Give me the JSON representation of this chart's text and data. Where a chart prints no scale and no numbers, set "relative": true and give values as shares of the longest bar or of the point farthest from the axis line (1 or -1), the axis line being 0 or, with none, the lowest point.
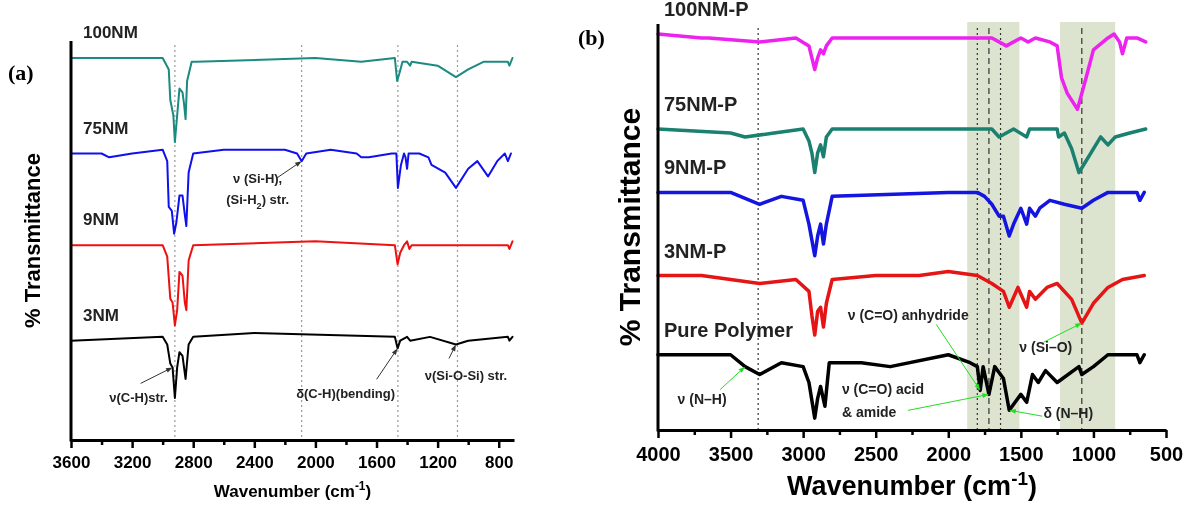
{
  "chart_data": [
    {
      "type": "line",
      "title": "(a)",
      "xlabel": "Wavenumber (cm$^{-1}$)",
      "ylabel": "% Transmittance",
      "relative": true,
      "tick_labels": "x",
      "legend": false,
      "grid": false,
      "xlim": [
        3600,
        700
      ],
      "xticks": [
        3600,
        {
          "value": 3400,
          "label": null
        },
        3200,
        {
          "value": 3000,
          "label": null
        },
        2800,
        {
          "value": 2600,
          "label": null
        },
        2400,
        {
          "value": 2200,
          "label": null
        },
        2000,
        {
          "value": 1800,
          "label": null
        },
        1600,
        {
          "value": 1400,
          "label": null
        },
        1200,
        {
          "value": 1000,
          "label": null
        },
        800
      ],
      "ref_lines": [
        {
          "axis": "x",
          "value": 2920,
          "line_style": "dotted",
          "color": "#999999"
        },
        {
          "axis": "x",
          "value": 2090,
          "line_style": "dotted",
          "color": "#999999"
        },
        {
          "axis": "x",
          "value": 1460,
          "line_style": "dotted",
          "color": "#999999"
        },
        {
          "axis": "x",
          "value": 1070,
          "line_style": "dotted",
          "color": "#999999"
        }
      ],
      "annotations": [
        {
          "text": "ν(C-H)str.",
          "x": 2935,
          "y": 0.19
        },
        {
          "text": "ν (Si-H), (Si-H$_{2}$) str.",
          "x": 2090,
          "y": 0.73
        },
        {
          "text": "δ(C-H)(bending)",
          "x": 1462,
          "y": 0.24
        },
        {
          "text": "ν(Si-O-Si) str.",
          "x": 1080,
          "y": 0.25
        }
      ],
      "series": [
        {
          "name": "100NM",
          "color": "#1b8a80",
          "x": [
            3600,
            3000,
            2960,
            2950,
            2930,
            2920,
            2905,
            2890,
            2870,
            2860,
            2850,
            2840,
            2810,
            2780,
            2000,
            1700,
            1480,
            1465,
            1450,
            1430,
            1400,
            1380,
            1370,
            1200,
            1080,
            1000,
            900,
            740,
            730,
            710
          ],
          "values": [
            1.0,
            1.0,
            0.97,
            0.89,
            0.85,
            0.78,
            0.85,
            0.92,
            0.91,
            0.88,
            0.84,
            0.94,
            0.99,
            0.99,
            1.0,
            0.99,
            1.0,
            0.94,
            0.96,
            0.99,
            0.99,
            0.98,
            0.99,
            0.98,
            0.95,
            0.97,
            0.99,
            0.99,
            0.98,
            1.0
          ]
        },
        {
          "name": "75NM",
          "color": "#1010ee",
          "x": [
            3600,
            3400,
            3350,
            3200,
            3000,
            2970,
            2960,
            2940,
            2925,
            2910,
            2890,
            2870,
            2855,
            2845,
            2830,
            2800,
            2600,
            2200,
            2120,
            2090,
            2060,
            1900,
            1730,
            1700,
            1650,
            1500,
            1470,
            1460,
            1440,
            1420,
            1410,
            1400,
            1390,
            1320,
            1260,
            1240,
            1150,
            1080,
            1000,
            940,
            870,
            810,
            760,
            740,
            720
          ],
          "values": [
            0.75,
            0.75,
            0.74,
            0.75,
            0.76,
            0.73,
            0.61,
            0.6,
            0.54,
            0.57,
            0.64,
            0.64,
            0.59,
            0.56,
            0.7,
            0.75,
            0.76,
            0.76,
            0.75,
            0.73,
            0.75,
            0.76,
            0.75,
            0.74,
            0.74,
            0.75,
            0.75,
            0.66,
            0.72,
            0.75,
            0.74,
            0.71,
            0.75,
            0.75,
            0.74,
            0.72,
            0.7,
            0.66,
            0.71,
            0.73,
            0.69,
            0.73,
            0.75,
            0.73,
            0.75
          ]
        },
        {
          "name": "9NM",
          "color": "#ee1111",
          "x": [
            3600,
            3000,
            2970,
            2950,
            2935,
            2920,
            2905,
            2890,
            2870,
            2855,
            2845,
            2830,
            2800,
            2000,
            1480,
            1462,
            1445,
            1420,
            1400,
            1385,
            1370,
            740,
            730,
            710
          ],
          "values": [
            0.51,
            0.51,
            0.48,
            0.37,
            0.36,
            0.3,
            0.34,
            0.44,
            0.43,
            0.36,
            0.34,
            0.47,
            0.51,
            0.52,
            0.51,
            0.46,
            0.49,
            0.51,
            0.52,
            0.5,
            0.51,
            0.51,
            0.5,
            0.52
          ]
        },
        {
          "name": "3NM",
          "color": "#000000",
          "x": [
            3600,
            3000,
            2970,
            2950,
            2935,
            2920,
            2905,
            2890,
            2870,
            2850,
            2830,
            2800,
            2400,
            1480,
            1462,
            1445,
            1400,
            1380,
            1250,
            1080,
            1000,
            740,
            730,
            710
          ],
          "values": [
            0.26,
            0.27,
            0.25,
            0.2,
            0.19,
            0.11,
            0.19,
            0.23,
            0.22,
            0.16,
            0.25,
            0.27,
            0.28,
            0.27,
            0.24,
            0.26,
            0.27,
            0.26,
            0.27,
            0.25,
            0.26,
            0.27,
            0.26,
            0.27
          ]
        }
      ]
    },
    {
      "type": "line",
      "title": "(b)",
      "xlabel": "Wavenumber (cm$^{-1}$)",
      "ylabel": "% Transmittance",
      "relative": true,
      "tick_labels": "x",
      "legend": false,
      "grid": false,
      "xlim": [
        4000,
        500
      ],
      "xticks": [
        4000,
        {
          "value": 3750,
          "label": null
        },
        3500,
        {
          "value": 3250,
          "label": null
        },
        3000,
        {
          "value": 2750,
          "label": null
        },
        2500,
        {
          "value": 2250,
          "label": null
        },
        2000,
        {
          "value": 1750,
          "label": null
        },
        1500,
        {
          "value": 1250,
          "label": null
        },
        1000,
        {
          "value": 750,
          "label": null
        },
        500
      ],
      "bands": [
        {
          "axis": "x",
          "from": 1870,
          "to": 1510,
          "color": "#dce4cf"
        },
        {
          "axis": "x",
          "from": 1230,
          "to": 850,
          "color": "#dce4cf"
        }
      ],
      "ref_lines": [
        {
          "axis": "x",
          "value": 3310,
          "line_style": "dotted",
          "color": "#333333"
        },
        {
          "axis": "x",
          "value": 1800,
          "line_style": "dotted",
          "color": "#333333"
        },
        {
          "axis": "x",
          "value": 1720,
          "line_style": "dashed",
          "color": "#333333"
        },
        {
          "axis": "x",
          "value": 1640,
          "line_style": "dotted",
          "color": "#333333"
        },
        {
          "axis": "x",
          "value": 1080,
          "line_style": "dashed",
          "color": "#333333"
        }
      ],
      "annotations": [
        {
          "text": "ν (N–H)",
          "x": 3400,
          "y": 0.16
        },
        {
          "text": "ν (C=O) anhydride",
          "x": 1780,
          "y": 0.1
        },
        {
          "text": "ν (C=O) acid & amide",
          "x": 1720,
          "y": 0.09
        },
        {
          "text": "δ (N–H)",
          "x": 1580,
          "y": 0.05
        },
        {
          "text": "ν (Si–O)",
          "x": 1080,
          "y": 0.27
        }
      ],
      "series": [
        {
          "name": "100NM-P",
          "color": "#ee22ee",
          "x": [
            4000,
            3700,
            3650,
            3300,
            3050,
            2960,
            2940,
            2920,
            2900,
            2880,
            2860,
            2840,
            2800,
            2000,
            1800,
            1700,
            1600,
            1500,
            1450,
            1400,
            1300,
            1250,
            1220,
            1180,
            1110,
            1050,
            1000,
            900,
            858,
            820,
            800,
            770,
            700,
            640
          ],
          "values": [
            1.0,
            0.99,
            0.99,
            0.98,
            0.99,
            0.97,
            0.94,
            0.91,
            0.94,
            0.96,
            0.95,
            0.97,
            0.99,
            0.99,
            0.99,
            0.99,
            0.97,
            0.99,
            0.98,
            0.99,
            0.98,
            0.97,
            0.89,
            0.85,
            0.81,
            0.89,
            0.96,
            0.99,
            1.0,
            0.98,
            0.95,
            0.99,
            0.99,
            0.98
          ]
        },
        {
          "name": "75NM-P",
          "color": "#1a8070",
          "x": [
            4000,
            3500,
            3400,
            3200,
            3000,
            2960,
            2940,
            2920,
            2900,
            2880,
            2860,
            2840,
            2800,
            2000,
            1700,
            1650,
            1550,
            1460,
            1440,
            1250,
            1240,
            1200,
            1150,
            1100,
            1050,
            950,
            900,
            850,
            750,
            640
          ],
          "values": [
            0.76,
            0.75,
            0.74,
            0.75,
            0.76,
            0.73,
            0.7,
            0.65,
            0.7,
            0.72,
            0.69,
            0.74,
            0.76,
            0.76,
            0.76,
            0.74,
            0.76,
            0.74,
            0.76,
            0.76,
            0.74,
            0.75,
            0.71,
            0.65,
            0.68,
            0.74,
            0.72,
            0.74,
            0.75,
            0.76
          ]
        },
        {
          "name": "9NM-P",
          "color": "#1515e0",
          "x": [
            4000,
            3500,
            3300,
            3150,
            3000,
            2960,
            2940,
            2920,
            2900,
            2880,
            2860,
            2840,
            2800,
            2000,
            1800,
            1750,
            1700,
            1650,
            1620,
            1580,
            1550,
            1500,
            1460,
            1440,
            1400,
            1370,
            1300,
            1200,
            1080,
            1000,
            900,
            700,
            680,
            650
          ],
          "values": [
            0.6,
            0.6,
            0.57,
            0.59,
            0.58,
            0.52,
            0.48,
            0.44,
            0.49,
            0.52,
            0.47,
            0.52,
            0.59,
            0.6,
            0.6,
            0.59,
            0.57,
            0.54,
            0.54,
            0.49,
            0.52,
            0.56,
            0.52,
            0.56,
            0.54,
            0.56,
            0.58,
            0.57,
            0.56,
            0.58,
            0.6,
            0.6,
            0.58,
            0.6
          ]
        },
        {
          "name": "3NM-P",
          "color": "#e61515",
          "x": [
            4000,
            3700,
            3300,
            3050,
            2960,
            2940,
            2920,
            2900,
            2880,
            2860,
            2840,
            2800,
            2500,
            2200,
            2000,
            1800,
            1700,
            1620,
            1580,
            1520,
            1460,
            1440,
            1400,
            1320,
            1250,
            1150,
            1080,
            1000,
            900,
            800,
            650
          ],
          "values": [
            0.39,
            0.39,
            0.37,
            0.38,
            0.35,
            0.29,
            0.24,
            0.3,
            0.31,
            0.26,
            0.32,
            0.38,
            0.39,
            0.39,
            0.4,
            0.39,
            0.37,
            0.35,
            0.31,
            0.36,
            0.31,
            0.35,
            0.33,
            0.36,
            0.37,
            0.33,
            0.27,
            0.32,
            0.36,
            0.38,
            0.39
          ]
        },
        {
          "name": "Pure Polymer",
          "color": "#000000",
          "x": [
            4000,
            3500,
            3400,
            3300,
            3150,
            3000,
            2960,
            2920,
            2900,
            2880,
            2850,
            2820,
            2600,
            2400,
            2000,
            1850,
            1800,
            1780,
            1760,
            1720,
            1680,
            1620,
            1580,
            1500,
            1460,
            1420,
            1380,
            1330,
            1250,
            1100,
            1080,
            1000,
            900,
            700,
            680,
            650
          ],
          "values": [
            0.19,
            0.19,
            0.16,
            0.14,
            0.17,
            0.16,
            0.12,
            0.03,
            0.08,
            0.11,
            0.06,
            0.17,
            0.17,
            0.16,
            0.19,
            0.17,
            0.16,
            0.1,
            0.16,
            0.09,
            0.16,
            0.13,
            0.05,
            0.09,
            0.07,
            0.14,
            0.12,
            0.15,
            0.12,
            0.16,
            0.14,
            0.16,
            0.19,
            0.19,
            0.17,
            0.19
          ]
        }
      ]
    }
  ]
}
